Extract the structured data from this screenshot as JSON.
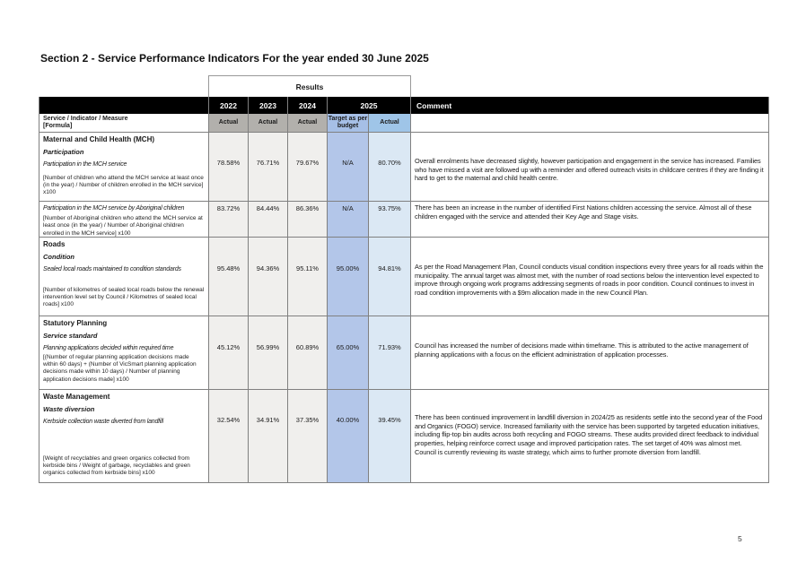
{
  "page": {
    "title": "Section 2 - Service Performance Indicators For the year ended 30 June 2025",
    "page_number": "5"
  },
  "table": {
    "results_header": "Results",
    "years": [
      "2022",
      "2023",
      "2024",
      "2025"
    ],
    "comment_header": "Comment",
    "measure_header_line1": "Service / Indicator / Measure",
    "measure_header_line2": "[Formula]",
    "subheaders": {
      "actual": "Actual",
      "target": "Target as per budget"
    },
    "colors": {
      "header_bar_bg": "#000000",
      "actual_header_bg": "#b2b0ac",
      "actual_cell_bg": "#f0efed",
      "target_header_bg": "#a6bfe6",
      "target_cell_bg": "#b3c6e9",
      "actual_2025_header_bg": "#9fc5e8",
      "actual_2025_cell_bg": "#dbe8f4"
    },
    "rows": [
      {
        "section": "Maternal and Child Health (MCH)",
        "category": "Participation",
        "indicator": "Participation in the MCH service",
        "formula": "[Number of children who attend the MCH service at least once (in the year) / Number of children enrolled in the MCH service] x100",
        "values": [
          "78.58%",
          "76.71%",
          "79.67%",
          "N/A",
          "80.70%"
        ],
        "comment": "Overall enrolments have decreased slightly, however participation and engagement in the service has increased. Families who have missed a visit are followed up with a reminder and offered outreach visits in childcare centres if they are finding it hard to get to the maternal and child health centre."
      },
      {
        "indicator": "Participation in the MCH service by Aboriginal children",
        "formula": "[Number of Aboriginal children who attend the MCH service at least once (in the year) / Number of Aboriginal children enrolled in the MCH service] x100",
        "values": [
          "83.72%",
          "84.44%",
          "86.36%",
          "N/A",
          "93.75%"
        ],
        "comment": "There has been an increase in the number of identified First Nations children accessing the service. Almost all of these children engaged with the service and attended their Key Age and Stage visits."
      },
      {
        "section": "Roads",
        "category": "Condition",
        "indicator": "Sealed local roads maintained to condition standards",
        "formula": "[Number of kilometres of sealed local roads below the renewal intervention level set by Council / Kilometres of sealed local roads] x100",
        "values": [
          "95.48%",
          "94.36%",
          "95.11%",
          "95.00%",
          "94.81%"
        ],
        "comment": "As per the Road Management Plan, Council conducts visual condition inspections every three years for all roads within the municipality. The annual target was almost met, with the number of road sections below the intervention level expected to improve through ongoing work programs addressing segments of roads in poor condition. Council continues to invest in road condition improvements with a $9m allocation made in the new Council Plan."
      },
      {
        "section": "Statutory Planning",
        "category": "Service standard",
        "indicator": "Planning applications decided within required time",
        "formula": "[(Number of regular planning application decisions made within 60 days) + (Number of VicSmart planning application decisions made within 10 days) / Number of planning application decisions made] x100",
        "values": [
          "45.12%",
          "56.99%",
          "60.89%",
          "65.00%",
          "71.93%"
        ],
        "comment": "Council has increased the number of decisions made within timeframe. This is attributed to the active management of planning applications with a focus on the efficient administration of application processes."
      },
      {
        "section": "Waste Management",
        "category": "Waste diversion",
        "indicator": "Kerbside collection waste diverted from landfill",
        "formula": "[Weight of recyclables and green organics collected from kerbside bins / Weight of garbage, recyclables and green organics collected from kerbside bins] x100",
        "values": [
          "32.54%",
          "34.91%",
          "37.35%",
          "40.00%",
          "39.45%"
        ],
        "comment": "There has been continued improvement in landfill diversion in 2024/25 as residents settle into the second year of the Food and Organics (FOGO) service. Increased familiarity with the service has been supported by targeted education initiatives, including flip-top bin audits across both recycling and FOGO streams. These audits provided direct feedback to individual properties, helping reinforce correct usage and improved participation rates. The set target of 40% was almost met. Council is currently reviewing its waste strategy, which aims to further promote diversion from landfill."
      }
    ]
  }
}
